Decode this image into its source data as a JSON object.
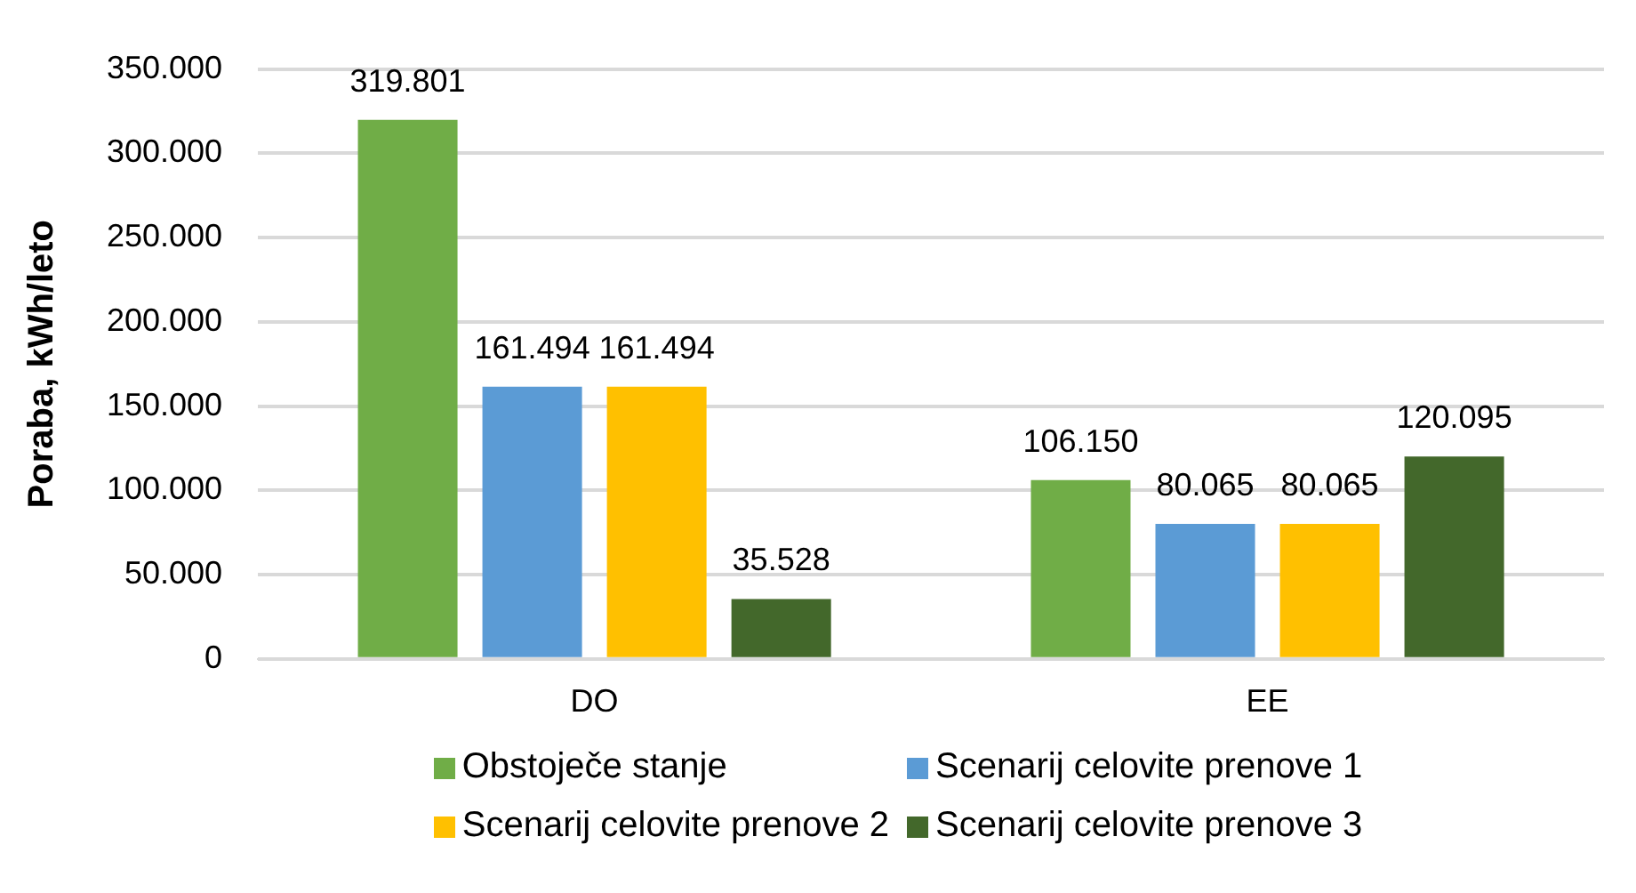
{
  "chart_data": {
    "type": "bar",
    "ylabel": "Poraba, kWh/leto",
    "categories": [
      "DO",
      "EE"
    ],
    "series": [
      {
        "name": "Obstoječe stanje",
        "color": "#70ad47",
        "values": [
          319801,
          106150
        ],
        "value_labels": [
          "319.801",
          "106.150"
        ]
      },
      {
        "name": "Scenarij celovite prenove 1",
        "color": "#5b9bd5",
        "values": [
          161494,
          80065
        ],
        "value_labels": [
          "161.494",
          "80.065"
        ]
      },
      {
        "name": "Scenarij celovite prenove 2",
        "color": "#ffc000",
        "values": [
          161494,
          80065
        ],
        "value_labels": [
          "161.494",
          "80.065"
        ]
      },
      {
        "name": "Scenarij celovite prenove 3",
        "color": "#43682b",
        "values": [
          35528,
          120095
        ],
        "value_labels": [
          "35.528",
          "120.095"
        ]
      }
    ],
    "ylim": [
      0,
      350000
    ],
    "yticks": [
      0,
      {
        "value": 50000,
        "label": "50.000"
      },
      {
        "value": 100000,
        "label": "100.000"
      },
      {
        "value": 150000,
        "label": "150.000"
      },
      {
        "value": 200000,
        "label": "200.000"
      },
      {
        "value": 250000,
        "label": "250.000"
      },
      {
        "value": 300000,
        "label": "300.000"
      },
      {
        "value": 350000,
        "label": "350.000"
      }
    ],
    "grid": "y",
    "legend": "bottom"
  }
}
